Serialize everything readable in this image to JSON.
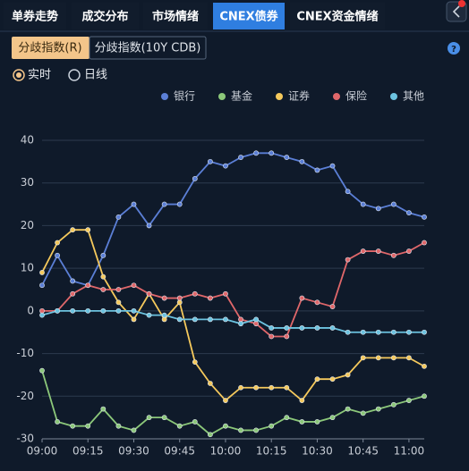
{
  "tabs": [
    "单券走势",
    "成交分布",
    "市场情绪",
    "CNEX债券",
    "CNEX资金情绪"
  ],
  "subtabs": [
    "分歧指数(R)",
    "分歧指数(10Y CDB)"
  ],
  "help": "?",
  "radios": [
    "实时",
    "日线"
  ],
  "chart_data": {
    "type": "line",
    "categories": [
      "09:00",
      null,
      null,
      "09:15",
      null,
      null,
      "09:30",
      null,
      null,
      "09:45",
      null,
      null,
      "10:00",
      null,
      null,
      "10:15",
      null,
      null,
      "10:30",
      null,
      null,
      "10:45",
      null,
      null,
      "11:00",
      null
    ],
    "series": [
      {
        "name": "银行",
        "color": "#5b7fd6",
        "values": [
          6,
          13,
          7,
          6,
          13,
          22,
          25,
          20,
          25,
          25,
          31,
          35,
          34,
          36,
          37,
          37,
          36,
          35,
          33,
          34,
          28,
          25,
          24,
          25,
          23,
          22
        ]
      },
      {
        "name": "基金",
        "color": "#8cc87a",
        "values": [
          -14,
          -26,
          -27,
          -27,
          -23,
          -27,
          -28,
          -25,
          -25,
          -27,
          -26,
          -29,
          -27,
          -28,
          -28,
          -27,
          -25,
          -26,
          -26,
          -25,
          -23,
          -24,
          -23,
          -22,
          -21,
          -20
        ]
      },
      {
        "name": "证券",
        "color": "#f5c95c",
        "values": [
          9,
          16,
          19,
          19,
          8,
          2,
          -2,
          4,
          -2,
          2,
          -12,
          -17,
          -21,
          -18,
          -18,
          -18,
          -18,
          -21,
          -16,
          -16,
          -15,
          -11,
          -11,
          -11,
          -11,
          -13
        ]
      },
      {
        "name": "保险",
        "color": "#e0676a",
        "values": [
          0,
          0,
          4,
          6,
          5,
          5,
          6,
          4,
          3,
          3,
          4,
          3,
          4,
          -2,
          -3,
          -6,
          -6,
          3,
          2,
          1,
          12,
          14,
          14,
          13,
          14,
          16
        ]
      },
      {
        "name": "其他",
        "color": "#6cc3e0",
        "values": [
          -1,
          0,
          0,
          0,
          0,
          0,
          0,
          -1,
          -1,
          -2,
          -2,
          -2,
          -2,
          -3,
          -2,
          -4,
          -4,
          -4,
          -4,
          -4,
          -5,
          -5,
          -5,
          -5,
          -5,
          -5
        ]
      }
    ],
    "ylim": [
      -30,
      40
    ],
    "yticks": [
      -30,
      -20,
      -10,
      0,
      10,
      20,
      30,
      40
    ],
    "grid": true,
    "legend": "top-right"
  }
}
